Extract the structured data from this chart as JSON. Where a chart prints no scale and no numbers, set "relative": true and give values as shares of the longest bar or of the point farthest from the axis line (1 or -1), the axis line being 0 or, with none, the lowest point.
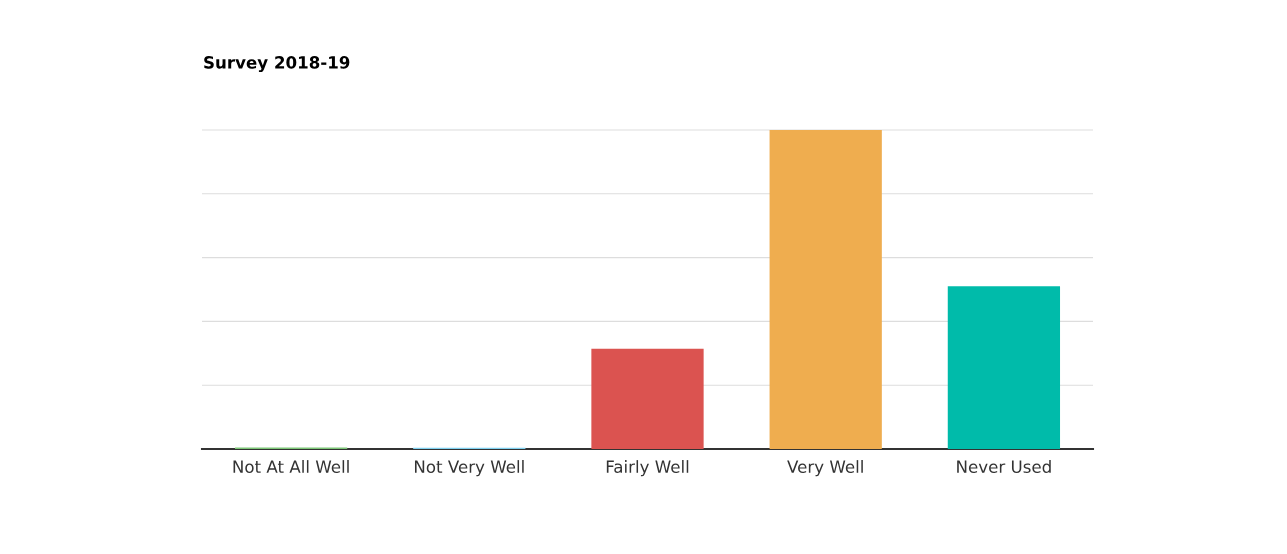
{
  "chart_data": {
    "type": "bar",
    "title": "Survey 2018-19",
    "relative": true,
    "categories": [
      "Not At All Well",
      "Not Very Well",
      "Fairly Well",
      "Very Well",
      "Never Used"
    ],
    "values": [
      0.005,
      0.004,
      0.314,
      1,
      0.51
    ],
    "colors": [
      "#7cc576",
      "#7fd0ef",
      "#db5350",
      "#efad4f",
      "#00bbaa"
    ],
    "grid": "y"
  }
}
